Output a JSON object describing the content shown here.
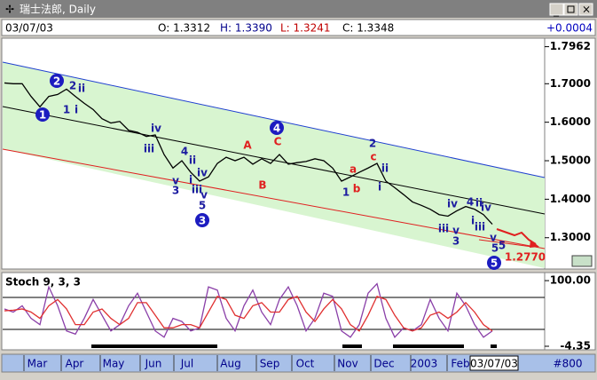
{
  "window": {
    "title": "瑞士法郎, Daily"
  },
  "header": {
    "date": "03/07/03",
    "open": "O: 1.3312",
    "high": "H: 1.3390",
    "low": "L: 1.3241",
    "close": "C: 1.3348",
    "change": "+0.0004"
  },
  "chart_data": [
    {
      "type": "line",
      "color": "#000000",
      "categories": [
        null,
        null,
        null,
        null,
        null,
        null,
        null,
        null,
        null,
        null,
        null,
        null,
        null,
        null,
        null,
        null,
        null,
        null,
        null,
        null,
        null,
        null,
        null,
        null,
        null,
        null,
        null,
        null,
        null,
        null,
        null,
        null,
        null,
        null,
        null,
        null,
        null,
        null,
        null,
        null,
        null,
        null,
        null,
        null,
        null,
        null,
        null,
        null,
        null,
        null,
        null,
        null,
        null,
        null,
        null,
        null
      ],
      "values": [
        1.702,
        1.7,
        1.7,
        1.667,
        1.64,
        1.667,
        1.672,
        1.686,
        1.667,
        1.649,
        1.633,
        1.609,
        1.598,
        1.602,
        1.579,
        1.574,
        1.563,
        1.567,
        1.516,
        1.481,
        1.5,
        1.47,
        1.447,
        1.458,
        1.493,
        1.509,
        1.5,
        1.509,
        1.491,
        1.505,
        1.493,
        1.516,
        1.491,
        1.495,
        1.498,
        1.505,
        1.5,
        1.481,
        1.447,
        1.458,
        1.47,
        1.481,
        1.493,
        1.447,
        1.43,
        1.412,
        1.393,
        1.384,
        1.374,
        1.36,
        1.356,
        1.37,
        1.381,
        1.374,
        1.36,
        1.335
      ],
      "ylim": [
        1.221,
        1.816
      ],
      "yticks": [
        {
          "value": 1.3,
          "label": "1.3000"
        },
        {
          "value": 1.4,
          "label": "1.4000"
        },
        {
          "value": 1.5,
          "label": "1.5000"
        },
        {
          "value": 1.6,
          "label": "1.6000"
        },
        {
          "value": 1.7,
          "label": "1.7000"
        },
        {
          "value": 1.7962,
          "label": "1.7962"
        }
      ],
      "annotations": [
        "2",
        "ii",
        "1",
        "i",
        "iv",
        "iii",
        "4",
        "ii",
        "iv",
        "v",
        "3",
        "i",
        "iii",
        "v",
        "5",
        "A",
        "C",
        "B",
        "2",
        "c",
        "a",
        "b",
        "ii",
        "i",
        "1",
        "iv",
        "4",
        "ii",
        "iv",
        "iii",
        "v",
        "3",
        "i",
        "iii",
        "v",
        "5",
        "5",
        "1.2770"
      ],
      "wave_markers": [
        "1",
        "2",
        "3",
        "4",
        "5"
      ]
    },
    {
      "type": "line",
      "title": "Stoch 9, 3, 3",
      "categories": [
        null,
        null,
        null,
        null,
        null,
        null,
        null,
        null,
        null,
        null,
        null,
        null,
        null,
        null,
        null,
        null,
        null,
        null,
        null,
        null,
        null,
        null,
        null,
        null,
        null,
        null,
        null,
        null,
        null,
        null,
        null,
        null,
        null,
        null,
        null,
        null,
        null,
        null,
        null,
        null,
        null,
        null,
        null,
        null,
        null,
        null,
        null,
        null,
        null,
        null,
        null,
        null,
        null,
        null,
        null,
        null
      ],
      "series": [
        {
          "color": "#8a3fa8",
          "values": [
            55,
            50,
            60,
            40,
            30,
            90,
            60,
            20,
            15,
            40,
            70,
            45,
            20,
            30,
            60,
            80,
            50,
            20,
            10,
            40,
            35,
            20,
            25,
            90,
            85,
            40,
            20,
            60,
            85,
            50,
            30,
            70,
            90,
            60,
            20,
            40,
            80,
            75,
            20,
            10,
            30,
            80,
            95,
            40,
            10,
            25,
            20,
            30,
            70,
            40,
            20,
            80,
            60,
            30,
            10,
            20
          ]
        },
        {
          "color": "#e03030",
          "values": [
            52,
            53,
            55,
            50,
            40,
            60,
            70,
            55,
            30,
            30,
            50,
            55,
            40,
            30,
            40,
            65,
            65,
            45,
            25,
            25,
            30,
            30,
            25,
            50,
            75,
            70,
            45,
            40,
            60,
            65,
            50,
            50,
            70,
            75,
            50,
            35,
            55,
            70,
            55,
            30,
            20,
            45,
            75,
            70,
            45,
            25,
            20,
            25,
            45,
            50,
            40,
            50,
            65,
            50,
            30,
            20
          ]
        }
      ],
      "ylim": [
        -8.6,
        111.4
      ],
      "yticks": [
        {
          "value": 100,
          "label": "100.00"
        },
        {
          "value": -4.35,
          "label": "-4.35"
        }
      ]
    }
  ],
  "xaxis": {
    "months": [
      "Mar",
      "Apr",
      "May",
      "Jun",
      "Jul",
      "Aug",
      "Sep",
      "Oct",
      "Nov",
      "Dec",
      "2003",
      "Feb"
    ],
    "current": "03/07/03",
    "count": "#800"
  }
}
